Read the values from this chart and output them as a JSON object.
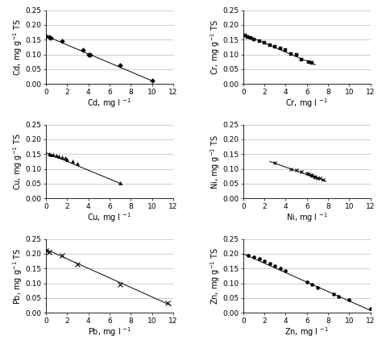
{
  "subplots": [
    {
      "metal": "Cd",
      "xlabel": "Cd, mg l $^{-1}$",
      "ylabel": "Cd, mg g$^{-1}$ TS",
      "marker": "D",
      "markersize": 3,
      "x_data": [
        0.0,
        0.3,
        0.5,
        1.5,
        3.5,
        4.0,
        4.2,
        7.0,
        10.0
      ],
      "y_data": [
        0.163,
        0.16,
        0.157,
        0.145,
        0.115,
        0.1,
        0.1,
        0.063,
        0.013
      ],
      "line_x": [
        0.0,
        10.2
      ],
      "line_y": [
        0.163,
        0.008
      ],
      "xlim": [
        0,
        12
      ],
      "ylim": [
        0,
        0.25
      ]
    },
    {
      "metal": "Cr",
      "xlabel": "Cr, mg l $^{-1}$",
      "ylabel": "Cr, mg g$^{-1}$ TS",
      "marker": "s",
      "markersize": 3,
      "x_data": [
        0.2,
        0.4,
        0.7,
        1.0,
        1.5,
        2.0,
        2.5,
        3.0,
        3.5,
        4.0,
        4.5,
        5.0,
        5.5,
        6.2,
        6.5
      ],
      "y_data": [
        0.165,
        0.16,
        0.155,
        0.15,
        0.145,
        0.14,
        0.133,
        0.125,
        0.12,
        0.115,
        0.102,
        0.1,
        0.083,
        0.075,
        0.072
      ],
      "line_x": [
        0.0,
        6.8
      ],
      "line_y": [
        0.17,
        0.065
      ],
      "xlim": [
        0,
        12
      ],
      "ylim": [
        0,
        0.25
      ]
    },
    {
      "metal": "Cu",
      "xlabel": "Cu, mg l $^{-1}$",
      "ylabel": "Cu, mg g$^{-1}$ TS",
      "marker": "^",
      "markersize": 3,
      "x_data": [
        0.3,
        0.5,
        0.7,
        1.0,
        1.2,
        1.5,
        1.8,
        2.0,
        2.5,
        3.0,
        7.0
      ],
      "y_data": [
        0.15,
        0.148,
        0.148,
        0.145,
        0.143,
        0.14,
        0.137,
        0.133,
        0.125,
        0.118,
        0.052
      ],
      "line_x": [
        0.0,
        7.2
      ],
      "line_y": [
        0.155,
        0.048
      ],
      "xlim": [
        0,
        12
      ],
      "ylim": [
        0,
        0.25
      ]
    },
    {
      "metal": "Ni",
      "xlabel": "Ni, mg l $^{-1}$",
      "ylabel": "Ni, mg g$^{-1}$ TS",
      "marker": "x",
      "markersize": 3,
      "x_data": [
        3.0,
        4.5,
        5.0,
        5.5,
        6.0,
        6.2,
        6.4,
        6.5,
        6.7,
        6.8,
        7.0,
        7.2,
        7.5
      ],
      "y_data": [
        0.12,
        0.1,
        0.095,
        0.092,
        0.085,
        0.082,
        0.08,
        0.078,
        0.075,
        0.073,
        0.07,
        0.068,
        0.063
      ],
      "line_x": [
        2.5,
        7.8
      ],
      "line_y": [
        0.125,
        0.058
      ],
      "xlim": [
        0,
        12
      ],
      "ylim": [
        0,
        0.25
      ]
    },
    {
      "metal": "Pb",
      "xlabel": "Pb, mg l $^{-1}$",
      "ylabel": "Pb, mg g$^{-1}$ TS",
      "marker": "x",
      "markersize": 4,
      "x_data": [
        0.0,
        0.3,
        1.5,
        3.0,
        7.0,
        11.5
      ],
      "y_data": [
        0.21,
        0.205,
        0.195,
        0.165,
        0.095,
        0.033
      ],
      "line_x": [
        0.0,
        11.8
      ],
      "line_y": [
        0.215,
        0.025
      ],
      "xlim": [
        0,
        12
      ],
      "ylim": [
        0,
        0.25
      ]
    },
    {
      "metal": "Zn",
      "xlabel": "Zn, mg l $^{-1}$",
      "ylabel": "Zn, mg g$^{-1}$ TS",
      "marker": "o",
      "markersize": 3,
      "x_data": [
        0.5,
        1.0,
        1.5,
        2.0,
        2.5,
        3.0,
        3.5,
        4.0,
        6.0,
        6.5,
        7.0,
        8.5,
        9.0,
        10.0,
        12.0
      ],
      "y_data": [
        0.195,
        0.188,
        0.183,
        0.175,
        0.168,
        0.16,
        0.152,
        0.143,
        0.105,
        0.095,
        0.085,
        0.063,
        0.055,
        0.045,
        0.013
      ],
      "line_x": [
        0.0,
        12.0
      ],
      "line_y": [
        0.2,
        0.008
      ],
      "xlim": [
        0,
        12
      ],
      "ylim": [
        0,
        0.25
      ]
    }
  ],
  "yticks": [
    0.0,
    0.05,
    0.1,
    0.15,
    0.2,
    0.25
  ],
  "xticks": [
    0,
    2,
    4,
    6,
    8,
    10,
    12
  ],
  "tick_fontsize": 6.5,
  "label_fontsize": 7,
  "line_color": "black",
  "marker_color": "black",
  "background_color": "#ffffff",
  "grid_color": "#bbbbbb"
}
